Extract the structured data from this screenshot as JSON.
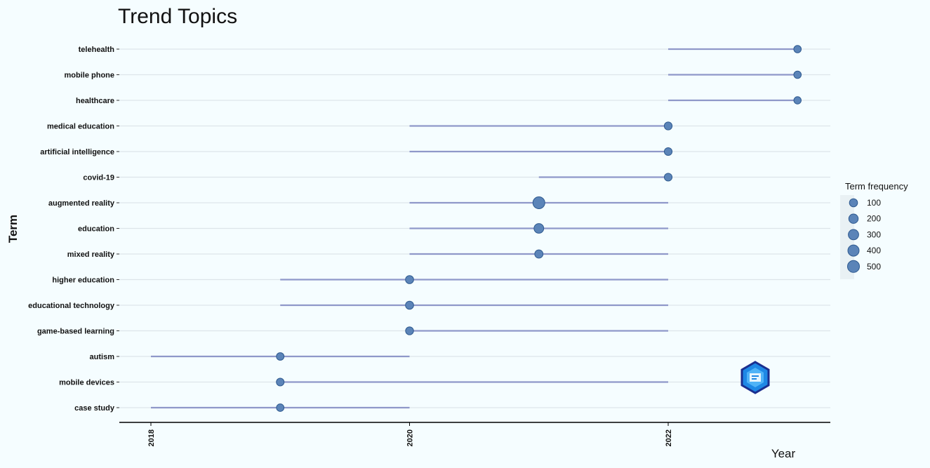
{
  "chart_data": {
    "type": "scatter",
    "title": "Trend Topics",
    "xlabel": "Year",
    "ylabel": "Term",
    "xlim": [
      2017.75,
      2023.25
    ],
    "x_ticks": [
      2018,
      2020,
      2022
    ],
    "grid": "horizontal",
    "legend_placement": "right",
    "legend": {
      "title": "Term frequency",
      "sizes": [
        100,
        200,
        300,
        400,
        500
      ]
    },
    "colors": {
      "point_fill": "#5b84b8",
      "point_stroke": "#2f5a8f",
      "segment": "#8f98c9",
      "gridline": "#dde5ea",
      "axis": "#000000",
      "background": "#f5fdff"
    },
    "terms": [
      {
        "term": "telehealth",
        "start": 2022,
        "end": 2023,
        "median": 2023,
        "freq": 60
      },
      {
        "term": "mobile phone",
        "start": 2022,
        "end": 2023,
        "median": 2023,
        "freq": 60
      },
      {
        "term": "healthcare",
        "start": 2022,
        "end": 2023,
        "median": 2023,
        "freq": 55
      },
      {
        "term": "medical education",
        "start": 2020,
        "end": 2022,
        "median": 2022,
        "freq": 85
      },
      {
        "term": "artificial intelligence",
        "start": 2020,
        "end": 2022,
        "median": 2022,
        "freq": 80
      },
      {
        "term": "covid-19",
        "start": 2021,
        "end": 2022,
        "median": 2022,
        "freq": 80
      },
      {
        "term": "augmented reality",
        "start": 2020,
        "end": 2022,
        "median": 2021,
        "freq": 500
      },
      {
        "term": "education",
        "start": 2020,
        "end": 2022,
        "median": 2021,
        "freq": 230
      },
      {
        "term": "mixed reality",
        "start": 2020,
        "end": 2022,
        "median": 2021,
        "freq": 110
      },
      {
        "term": "higher education",
        "start": 2019,
        "end": 2022,
        "median": 2020,
        "freq": 100
      },
      {
        "term": "educational technology",
        "start": 2019,
        "end": 2022,
        "median": 2020,
        "freq": 100
      },
      {
        "term": "game-based learning",
        "start": 2020,
        "end": 2022,
        "median": 2020,
        "freq": 90
      },
      {
        "term": "autism",
        "start": 2018,
        "end": 2020,
        "median": 2019,
        "freq": 70
      },
      {
        "term": "mobile devices",
        "start": 2019,
        "end": 2022,
        "median": 2019,
        "freq": 75
      },
      {
        "term": "case study",
        "start": 2018,
        "end": 2020,
        "median": 2019,
        "freq": 65
      }
    ]
  }
}
